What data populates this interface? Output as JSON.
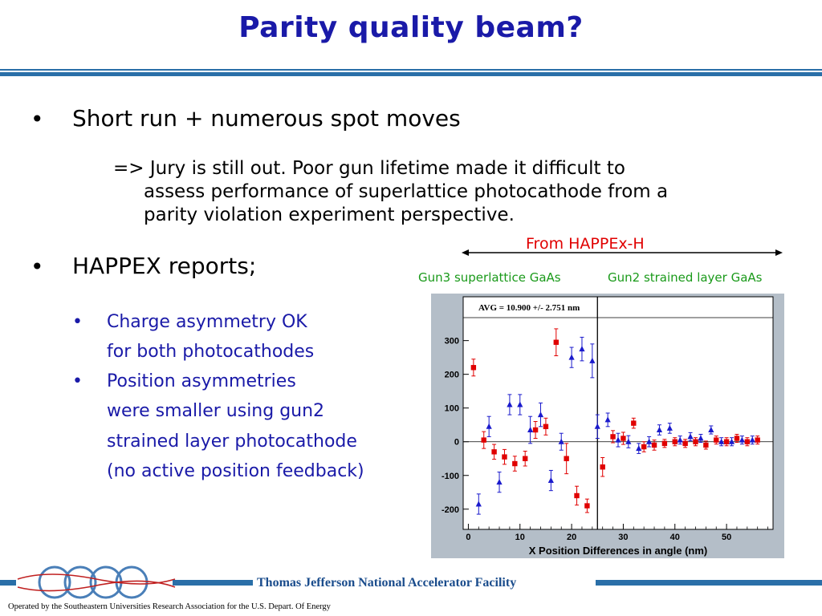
{
  "slide": {
    "title": "Parity quality beam?",
    "bullet1": "Short run + numerous spot moves",
    "bullet1_sub_line1": "=> Jury is still out.  Poor gun lifetime made it difficult to",
    "bullet1_sub_line2": "assess performance of superlattice photocathode from a",
    "bullet1_sub_line3": "parity violation experiment perspective.",
    "bullet2": "HAPPEX reports;",
    "sub_bullets": [
      {
        "line1": "Charge asymmetry OK",
        "line2": "for both photocathodes"
      },
      {
        "line1": "Position asymmetries",
        "line2": "were smaller using gun2",
        "line3": "strained layer photocathode",
        "line4": "(no active position feedback)"
      }
    ],
    "bullet_char": "•",
    "from_label": "From HAPPEx-H",
    "gun3_label": "Gun3 superlattice GaAs",
    "gun2_label": "Gun2 strained layer GaAs"
  },
  "footer": {
    "facility": "Thomas Jefferson National Accelerator Facility",
    "operated": "Operated by the Southeastern Universities Research Association for the U.S. Depart. Of Energy",
    "logo_text": "Jefferson Lab"
  },
  "colors": {
    "title": "#1a1aa8",
    "accent_bar": "#2a6fa8",
    "red_series": "#e00000",
    "blue_series": "#1a1acc",
    "green_label": "#1a9a1a",
    "plot_bg": "#b4bec8"
  },
  "chart_data": {
    "type": "scatter",
    "title": "",
    "annotation": "AVG = 10.900 +/- 2.751 nm",
    "xlabel": "X Position Differences in angle (nm)",
    "ylabel": "",
    "xlim": [
      -1,
      59
    ],
    "ylim": [
      -260,
      430
    ],
    "xticks": [
      0,
      10,
      20,
      30,
      40,
      50
    ],
    "yticks": [
      -200,
      -100,
      0,
      100,
      200,
      300
    ],
    "divider_x": 25,
    "series": [
      {
        "color": "#e00000",
        "marker": "square",
        "points": [
          {
            "x": 1,
            "y": 220,
            "err": 25
          },
          {
            "x": 3,
            "y": 5,
            "err": 25
          },
          {
            "x": 5,
            "y": -30,
            "err": 22
          },
          {
            "x": 7,
            "y": -45,
            "err": 22
          },
          {
            "x": 9,
            "y": -65,
            "err": 22
          },
          {
            "x": 11,
            "y": -50,
            "err": 22
          },
          {
            "x": 13,
            "y": 35,
            "err": 25
          },
          {
            "x": 15,
            "y": 45,
            "err": 25
          },
          {
            "x": 17,
            "y": 295,
            "err": 40
          },
          {
            "x": 19,
            "y": -50,
            "err": 45
          },
          {
            "x": 21,
            "y": -160,
            "err": 28
          },
          {
            "x": 23,
            "y": -190,
            "err": 20
          },
          {
            "x": 26,
            "y": -75,
            "err": 28
          },
          {
            "x": 28,
            "y": 15,
            "err": 18
          },
          {
            "x": 30,
            "y": 10,
            "err": 18
          },
          {
            "x": 32,
            "y": 55,
            "err": 15
          },
          {
            "x": 34,
            "y": -15,
            "err": 15
          },
          {
            "x": 36,
            "y": -10,
            "err": 15
          },
          {
            "x": 38,
            "y": -5,
            "err": 12
          },
          {
            "x": 40,
            "y": 0,
            "err": 12
          },
          {
            "x": 42,
            "y": -5,
            "err": 12
          },
          {
            "x": 44,
            "y": 0,
            "err": 12
          },
          {
            "x": 46,
            "y": -10,
            "err": 12
          },
          {
            "x": 48,
            "y": 5,
            "err": 12
          },
          {
            "x": 50,
            "y": 0,
            "err": 12
          },
          {
            "x": 52,
            "y": 10,
            "err": 12
          },
          {
            "x": 54,
            "y": 0,
            "err": 12
          },
          {
            "x": 56,
            "y": 5,
            "err": 12
          }
        ]
      },
      {
        "color": "#1a1acc",
        "marker": "triangle",
        "points": [
          {
            "x": 2,
            "y": -185,
            "err": 30
          },
          {
            "x": 4,
            "y": 45,
            "err": 30
          },
          {
            "x": 6,
            "y": -120,
            "err": 30
          },
          {
            "x": 8,
            "y": 110,
            "err": 30
          },
          {
            "x": 10,
            "y": 110,
            "err": 30
          },
          {
            "x": 12,
            "y": 35,
            "err": 40
          },
          {
            "x": 14,
            "y": 80,
            "err": 35
          },
          {
            "x": 16,
            "y": -115,
            "err": 30
          },
          {
            "x": 18,
            "y": 0,
            "err": 25
          },
          {
            "x": 20,
            "y": 250,
            "err": 30
          },
          {
            "x": 22,
            "y": 275,
            "err": 35
          },
          {
            "x": 24,
            "y": 240,
            "err": 50
          },
          {
            "x": 25,
            "y": 45,
            "err": 35
          },
          {
            "x": 27,
            "y": 65,
            "err": 20
          },
          {
            "x": 29,
            "y": 5,
            "err": 20
          },
          {
            "x": 31,
            "y": 0,
            "err": 18
          },
          {
            "x": 33,
            "y": -20,
            "err": 15
          },
          {
            "x": 35,
            "y": 0,
            "err": 15
          },
          {
            "x": 37,
            "y": 35,
            "err": 15
          },
          {
            "x": 39,
            "y": 40,
            "err": 15
          },
          {
            "x": 41,
            "y": 5,
            "err": 12
          },
          {
            "x": 43,
            "y": 15,
            "err": 12
          },
          {
            "x": 45,
            "y": 10,
            "err": 12
          },
          {
            "x": 47,
            "y": 35,
            "err": 12
          },
          {
            "x": 49,
            "y": 0,
            "err": 12
          },
          {
            "x": 51,
            "y": 0,
            "err": 12
          },
          {
            "x": 53,
            "y": 5,
            "err": 12
          },
          {
            "x": 55,
            "y": 5,
            "err": 12
          }
        ]
      }
    ]
  }
}
